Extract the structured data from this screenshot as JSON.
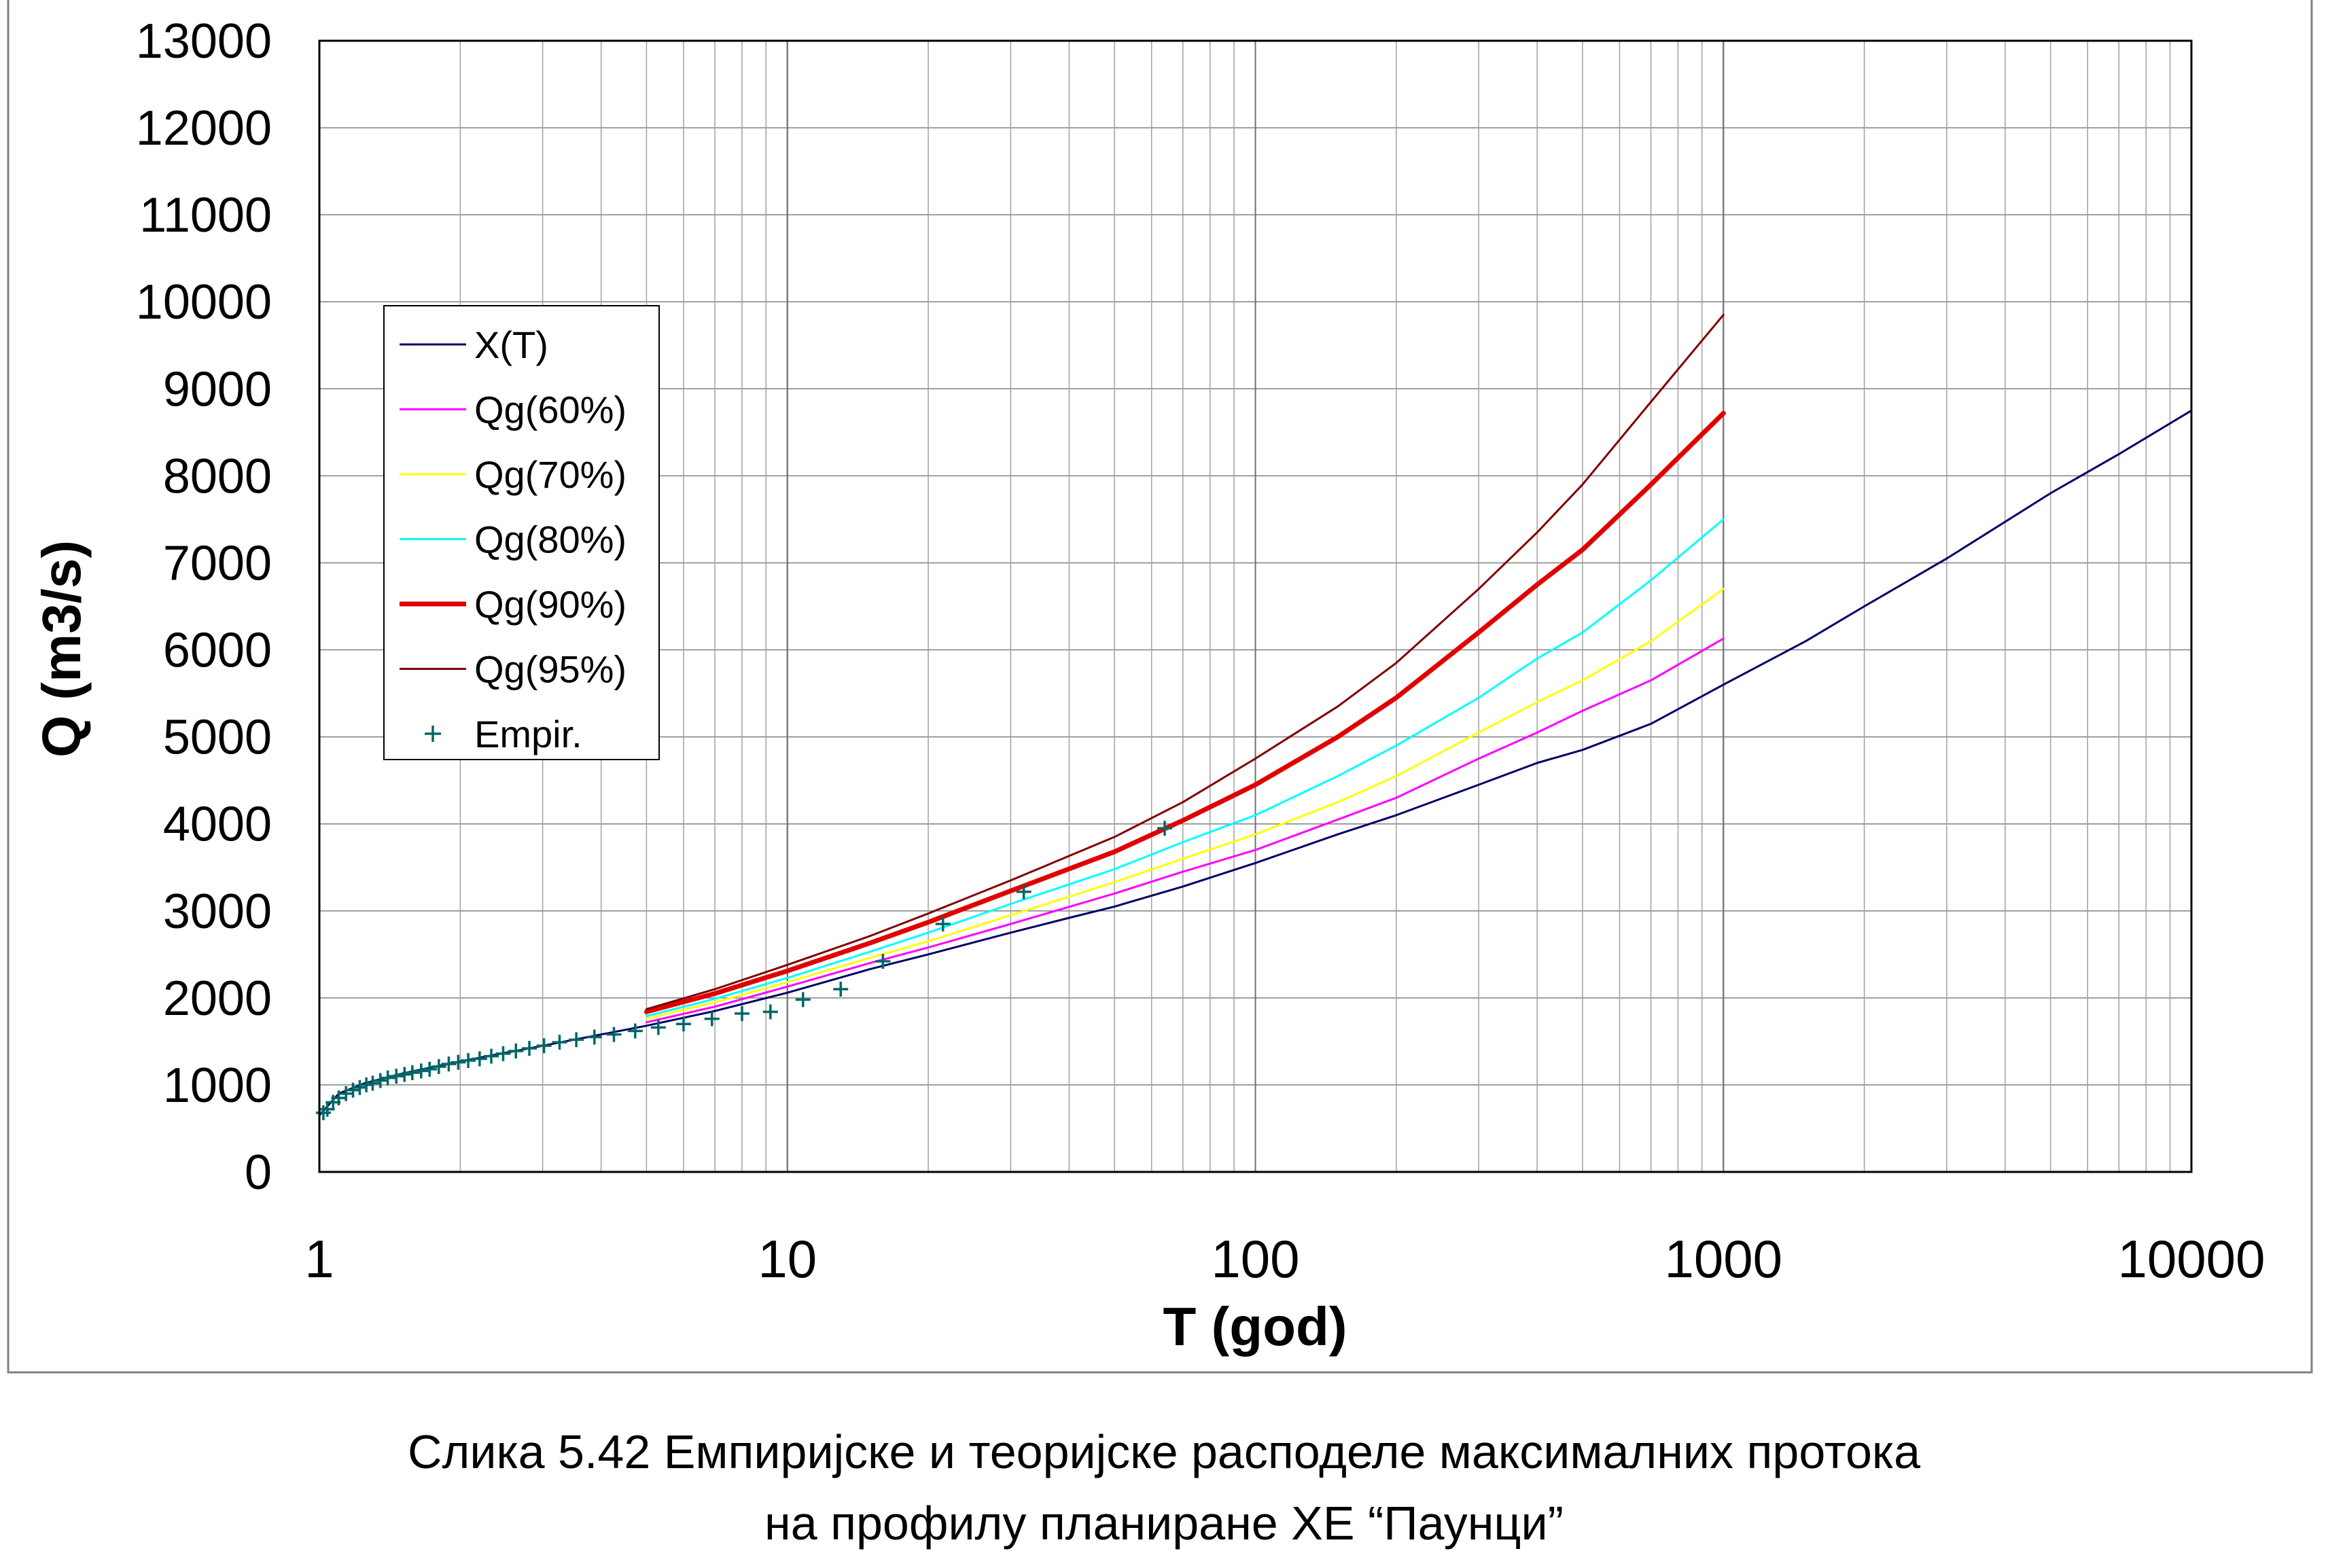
{
  "chart_data": {
    "type": "line",
    "title": "",
    "xlabel": "T (god)",
    "ylabel": "Q (m3/s)",
    "x_scale": "log",
    "xlim": [
      1,
      10000
    ],
    "ylim": [
      0,
      13000
    ],
    "x_ticks": [
      "1",
      "10",
      "100",
      "1000",
      "10000"
    ],
    "y_ticks": [
      "0",
      "1000",
      "2000",
      "3000",
      "4000",
      "5000",
      "6000",
      "7000",
      "8000",
      "9000",
      "10000",
      "11000",
      "12000",
      "13000"
    ],
    "grid": true,
    "legend_position": "upper-left",
    "series": [
      {
        "name": "X(T)",
        "color": "#000066",
        "width": 3,
        "style": "line",
        "x": [
          1,
          1.1,
          1.25,
          1.5,
          2,
          3,
          5,
          7,
          10,
          15,
          20,
          30,
          40,
          50,
          70,
          100,
          150,
          200,
          300,
          400,
          500,
          700,
          1000,
          1500,
          2000,
          3000,
          5000,
          7000,
          10000
        ],
        "y": [
          650,
          900,
          1020,
          1130,
          1270,
          1450,
          1680,
          1850,
          2060,
          2330,
          2500,
          2750,
          2920,
          3050,
          3280,
          3550,
          3880,
          4100,
          4450,
          4700,
          4850,
          5150,
          5600,
          6100,
          6500,
          7050,
          7800,
          8250,
          8750
        ]
      },
      {
        "name": "Qg(60%)",
        "color": "#ff00ff",
        "width": 3,
        "style": "line",
        "x": [
          5,
          7,
          10,
          15,
          20,
          30,
          50,
          70,
          100,
          150,
          200,
          300,
          400,
          500,
          700,
          1000
        ],
        "y": [
          1720,
          1900,
          2130,
          2400,
          2580,
          2850,
          3200,
          3450,
          3700,
          4050,
          4300,
          4750,
          5050,
          5300,
          5650,
          6130
        ]
      },
      {
        "name": "Qg(70%)",
        "color": "#ffff00",
        "width": 3,
        "style": "line",
        "x": [
          5,
          7,
          10,
          15,
          20,
          30,
          50,
          70,
          100,
          150,
          200,
          300,
          400,
          500,
          700,
          1000
        ],
        "y": [
          1760,
          1950,
          2180,
          2460,
          2650,
          2950,
          3330,
          3600,
          3880,
          4250,
          4550,
          5050,
          5400,
          5650,
          6100,
          6700
        ]
      },
      {
        "name": "Qg(80%)",
        "color": "#00ffff",
        "width": 3,
        "style": "line",
        "x": [
          5,
          7,
          10,
          15,
          20,
          30,
          50,
          70,
          100,
          150,
          200,
          300,
          400,
          500,
          700,
          1000
        ],
        "y": [
          1790,
          1990,
          2230,
          2530,
          2750,
          3080,
          3480,
          3790,
          4100,
          4550,
          4900,
          5450,
          5900,
          6200,
          6800,
          7500
        ]
      },
      {
        "name": "Qg(90%)",
        "color": "#e00000",
        "width": 7,
        "style": "line",
        "x": [
          5,
          7,
          10,
          15,
          20,
          30,
          50,
          70,
          100,
          150,
          200,
          300,
          400,
          500,
          700,
          1000
        ],
        "y": [
          1840,
          2050,
          2310,
          2630,
          2870,
          3230,
          3680,
          4040,
          4450,
          5000,
          5450,
          6200,
          6750,
          7150,
          7900,
          8720
        ]
      },
      {
        "name": "Qg(95%)",
        "color": "#800000",
        "width": 3,
        "style": "line",
        "x": [
          5,
          7,
          10,
          15,
          20,
          30,
          50,
          70,
          100,
          150,
          200,
          300,
          400,
          500,
          700,
          1000
        ],
        "y": [
          1870,
          2100,
          2380,
          2710,
          2970,
          3350,
          3850,
          4250,
          4750,
          5350,
          5850,
          6700,
          7350,
          7900,
          8850,
          9850
        ]
      },
      {
        "name": "Empir.",
        "color": "#006666",
        "style": "marker",
        "x": [
          1.02,
          1.04,
          1.07,
          1.1,
          1.14,
          1.18,
          1.22,
          1.26,
          1.3,
          1.35,
          1.4,
          1.46,
          1.52,
          1.58,
          1.65,
          1.72,
          1.8,
          1.89,
          1.98,
          2.08,
          2.2,
          2.33,
          2.47,
          2.63,
          2.81,
          3.02,
          3.26,
          3.54,
          3.87,
          4.26,
          4.73,
          5.3,
          6.0,
          6.9,
          8.0,
          9.2,
          10.8,
          13.0,
          16.0,
          21.5,
          32.0,
          64.0
        ],
        "y": [
          680,
          720,
          800,
          850,
          900,
          940,
          970,
          1000,
          1020,
          1050,
          1080,
          1100,
          1120,
          1140,
          1160,
          1180,
          1210,
          1240,
          1260,
          1280,
          1300,
          1330,
          1360,
          1390,
          1420,
          1450,
          1490,
          1520,
          1550,
          1580,
          1620,
          1660,
          1700,
          1760,
          1820,
          1840,
          1980,
          2100,
          2420,
          2850,
          3220,
          3950
        ]
      }
    ]
  },
  "caption": {
    "line1": "Слика 5.42 Емпиријске и теоријске расподеле максималних протока",
    "line2": "на профилу планиране ХЕ “Паунци”"
  }
}
